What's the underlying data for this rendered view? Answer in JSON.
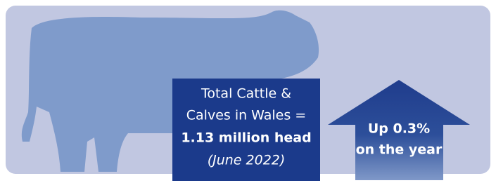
{
  "info_box": {
    "lines": [
      "Total Cattle &",
      "Calves in Wales =",
      "1.13 million head",
      "(June 2022)"
    ]
  },
  "arrow": {
    "lines": [
      "Up 0.3%",
      "on the year"
    ]
  }
}
